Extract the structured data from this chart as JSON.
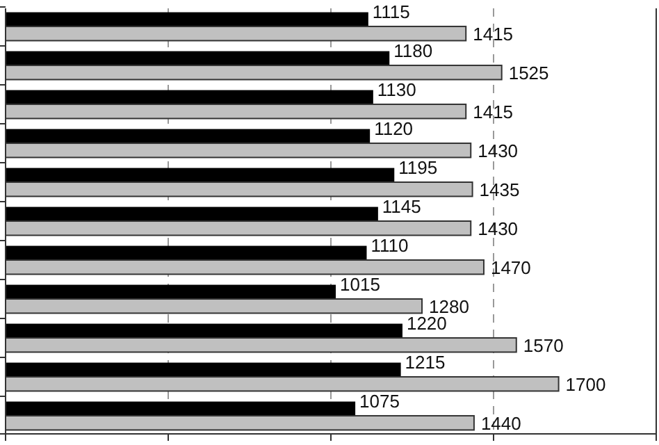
{
  "chart_data": {
    "type": "bar",
    "orientation": "horizontal",
    "categories": [
      null,
      null,
      null,
      null,
      null,
      null,
      null,
      null,
      null,
      null,
      null
    ],
    "series": [
      {
        "color": "#000000",
        "values": [
          1115,
          1180,
          1130,
          1120,
          1195,
          1145,
          1110,
          1015,
          1220,
          1215,
          1075
        ]
      },
      {
        "color": "#c0c0c0",
        "values": [
          1415,
          1525,
          1415,
          1430,
          1435,
          1430,
          1470,
          1280,
          1570,
          1700,
          1440
        ]
      }
    ],
    "xlim": [
      0,
      2000
    ],
    "xticks": [
      {
        "value": 0,
        "label": null
      },
      {
        "value": 500,
        "label": null
      },
      {
        "value": 1000,
        "label": null
      },
      {
        "value": 1500,
        "label": null
      },
      {
        "value": 2000,
        "label": null
      }
    ],
    "grid": "x",
    "data_labels": true
  }
}
